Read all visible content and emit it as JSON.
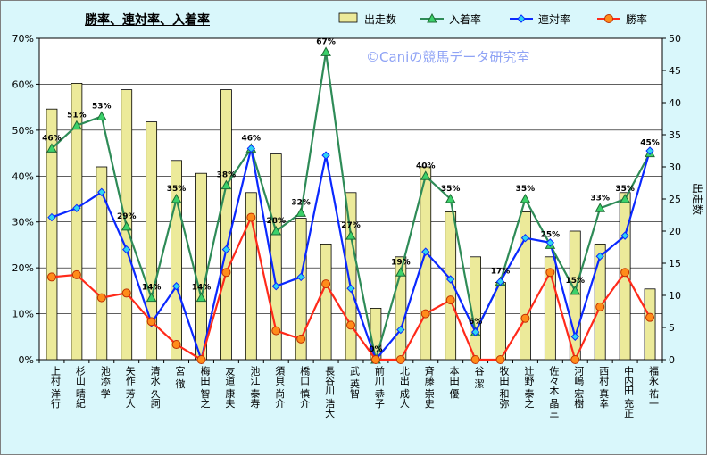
{
  "chart_data": {
    "type": "bar+line",
    "title": "勝率、連対率、入着率",
    "watermark": "©Caniの競馬データ研究室",
    "categories": [
      "上村 洋行",
      "杉山 晴紀",
      "池添 学",
      "矢作 芳人",
      "清水 久詞",
      "宮 徹",
      "梅田 智之",
      "友道 康夫",
      "池江 泰寿",
      "須貝 尚介",
      "橋口 慎介",
      "長谷川 浩大",
      "武 英智",
      "前川 恭子",
      "北出 成人",
      "斉藤 崇史",
      "本田 優",
      "谷 潔",
      "牧田 和弥",
      "辻野 泰之",
      "佐々木 晶三",
      "河嶋 宏樹",
      "西村 真幸",
      "中内田 充正",
      "福永 祐一"
    ],
    "bar_series": {
      "name": "出走数",
      "axis": "right",
      "color": "#ecea9a",
      "values": [
        39,
        43,
        30,
        42,
        37,
        31,
        29,
        42,
        26,
        32,
        22,
        18,
        26,
        8,
        16,
        30,
        23,
        16,
        12,
        23,
        16,
        20,
        18,
        26,
        11
      ]
    },
    "line_series": [
      {
        "name": "入着率",
        "axis": "left",
        "color": "#2e8b57",
        "marker": "triangle",
        "values": [
          46,
          51,
          53,
          29,
          13.5,
          35,
          13.5,
          38,
          46,
          28,
          32,
          67,
          27,
          0,
          19,
          40,
          35,
          6,
          17,
          35,
          25,
          15,
          33,
          35,
          45
        ],
        "labels": [
          "46%",
          "51%",
          "53%",
          "29%",
          "14%",
          "35%",
          "14%",
          "38%",
          "46%",
          "28%",
          "32%",
          "67%",
          "27%",
          "0%",
          "19%",
          "40%",
          "35%",
          "6%",
          "17%",
          "35%",
          "25%",
          "15%",
          "33%",
          "35%",
          "45%"
        ]
      },
      {
        "name": "連対率",
        "axis": "left",
        "color": "#0a28ff",
        "marker": "diamond",
        "values": [
          31,
          33,
          36.5,
          24,
          8,
          16,
          0,
          24,
          46,
          16,
          18,
          44.5,
          15.5,
          0,
          6.5,
          23.5,
          17.5,
          6,
          17,
          26.5,
          25.5,
          5,
          22.5,
          27,
          45.5
        ]
      },
      {
        "name": "勝率",
        "axis": "left",
        "color": "#ff2a1a",
        "marker": "circle",
        "values": [
          18,
          18.5,
          13.5,
          14.5,
          8.3,
          3.3,
          0,
          19,
          31,
          6.3,
          4.5,
          16.5,
          7.5,
          0,
          0,
          10,
          13,
          0,
          0,
          9,
          19,
          0,
          11.5,
          19,
          9.2
        ]
      }
    ],
    "y_left": {
      "min": 0,
      "max": 70,
      "ticks": [
        "0%",
        "10%",
        "20%",
        "30%",
        "40%",
        "50%",
        "60%",
        "70%"
      ]
    },
    "y_right": {
      "min": 0,
      "max": 50,
      "label": "出走数",
      "ticks": [
        "0",
        "5",
        "10",
        "15",
        "20",
        "25",
        "30",
        "35",
        "40",
        "45",
        "50"
      ]
    },
    "legend_position": "top-right",
    "grid": true,
    "colors": {
      "background": "#d9f7fb",
      "plot": "#ffffff"
    }
  }
}
